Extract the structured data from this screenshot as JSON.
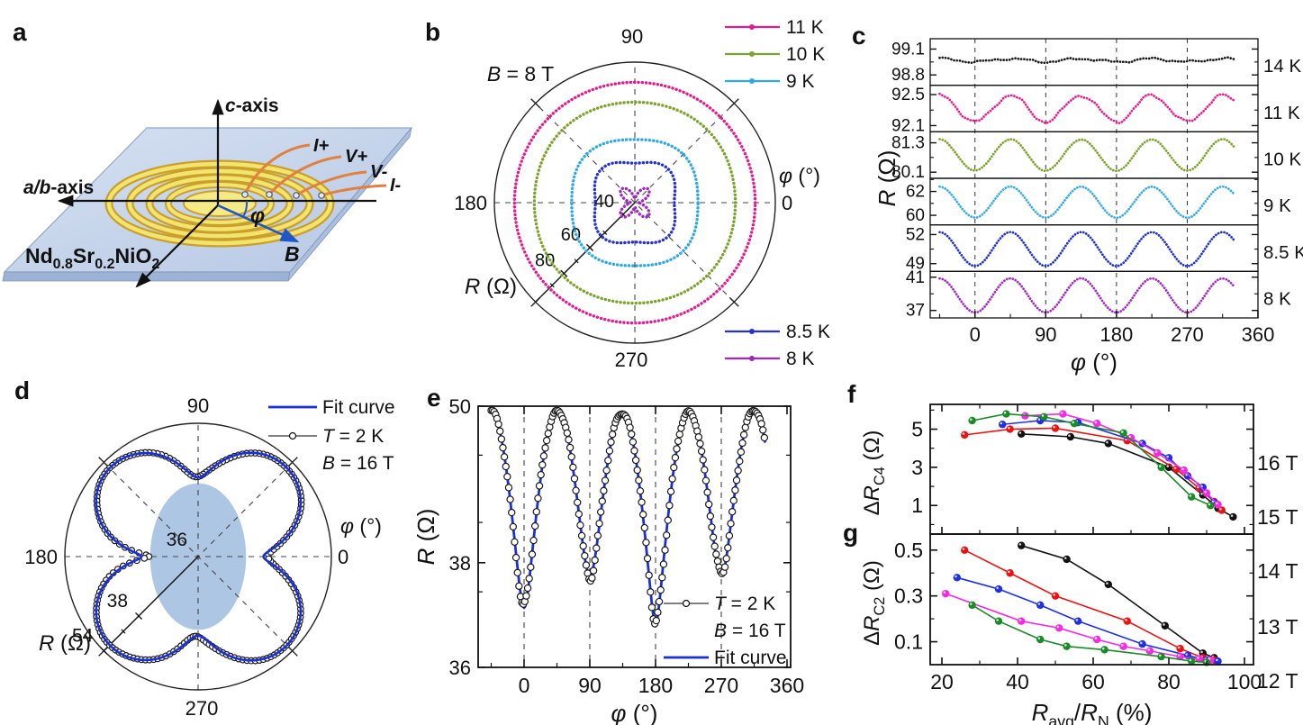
{
  "figure": {
    "background": "#ffffff"
  },
  "panel_letters": {
    "a": "a",
    "b": "b",
    "c": "c",
    "d": "d",
    "e": "e",
    "f": "f",
    "g": "g"
  },
  "panel_a": {
    "axis_c_sym": "c",
    "axis_c_rest": "-axis",
    "axis_ab_sym": "a/b",
    "axis_ab_rest": "-axis",
    "angle": "φ",
    "field": "B",
    "leads": [
      "I+",
      "V+",
      "V-",
      "I-"
    ],
    "material": {
      "el1": "Nd",
      "sub1": "0.8",
      "el2": "Sr",
      "sub2": "0.2",
      "el3": "NiO",
      "sub3": "2"
    },
    "colors": {
      "plate_top": "#c9d7ee",
      "plate_side": "#9db3d6",
      "ring_gold": "#c8a02a",
      "ring_fill": "#f2e46e",
      "disk_fill": "#f5ea85",
      "wire": "#e0813f",
      "field_arrow": "#2156c8",
      "axis": "#111111"
    }
  },
  "chart_data": {
    "panel_b": {
      "type": "polar",
      "title": {
        "sym": "B",
        "rest": " = 8 T"
      },
      "angle_labels": {
        "t90": "90",
        "t180": "180",
        "t0": "0",
        "t270": "270"
      },
      "angle_axis_title": {
        "sym": "φ",
        "unit": " (°)"
      },
      "radial_axis_title": {
        "sym": "R",
        "unit": " (Ω)"
      },
      "radial_ticks": [
        "40",
        "60",
        "80"
      ],
      "radial_tick_values": [
        40,
        60,
        80
      ],
      "radial_minor_values": [
        50,
        70,
        90
      ],
      "radial_range": [
        36,
        105
      ],
      "radial_power": 0.75,
      "series": [
        {
          "label": "11 K",
          "color": "#ea1a8c",
          "r_axis": 92.15,
          "r_diag": 92.5
        },
        {
          "label": "10 K",
          "color": "#7ca32b",
          "r_axis": 80.15,
          "r_diag": 81.45
        },
        {
          "label": "9 K",
          "color": "#2fa8e6",
          "r_axis": 59.75,
          "r_diag": 62.4
        },
        {
          "label": "8.5 K",
          "color": "#2430d8",
          "r_axis": 48.7,
          "r_diag": 52.2
        },
        {
          "label": "8 K",
          "color": "#a126c2",
          "r_axis": 36.65,
          "r_diag": 40.8
        }
      ],
      "legend_top_indices": [
        0,
        1,
        2
      ],
      "legend_bottom_indices": [
        3,
        4
      ]
    },
    "panel_c": {
      "type": "stacked_line",
      "x": {
        "min": -57,
        "max": 360,
        "ticks": [
          "0",
          "90",
          "180",
          "270",
          "360"
        ],
        "tick_values": [
          0,
          90,
          180,
          270,
          360
        ],
        "minor_step": 45,
        "dashed": [
          0,
          90,
          180,
          270
        ],
        "data_start": -45,
        "data_end": 330
      },
      "xlabel": {
        "sym": "φ",
        "unit": " (°)"
      },
      "ylabel": {
        "sym": "R",
        "unit": " (Ω)"
      },
      "subpanels": [
        {
          "label": "14 K",
          "color": "#1a1a1a",
          "ymin": 98.68,
          "ymax": 99.22,
          "tick_hi": "99.1",
          "tick_lo": "98.8",
          "tick_hi_v": 99.1,
          "tick_lo_v": 98.8,
          "mid": 98.97,
          "amp": 0.018,
          "noise": 0.018
        },
        {
          "label": "11 K",
          "color": "#ec1c8d",
          "ymin": 92.02,
          "ymax": 92.62,
          "tick_hi": "92.5",
          "tick_lo": "92.1",
          "tick_hi_v": 92.5,
          "tick_lo_v": 92.1,
          "mid": 92.32,
          "amp": 0.17,
          "noise": 0.028
        },
        {
          "label": "10 K",
          "color": "#7ca32b",
          "ymin": 79.85,
          "ymax": 81.75,
          "tick_hi": "81.3",
          "tick_lo": "80.1",
          "tick_hi_v": 81.3,
          "tick_lo_v": 80.1,
          "mid": 80.8,
          "amp": 0.64,
          "noise": 0.018
        },
        {
          "label": "9 K",
          "color": "#35abe8",
          "ymin": 59.2,
          "ymax": 63.1,
          "tick_hi": "62",
          "tick_lo": "60",
          "tick_hi_v": 62,
          "tick_lo_v": 60,
          "mid": 61.1,
          "amp": 1.3,
          "noise": 0.015
        },
        {
          "label": "8.5 K",
          "color": "#2133cc",
          "ymin": 48.2,
          "ymax": 53.0,
          "tick_hi": "52",
          "tick_lo": "49",
          "tick_hi_v": 52,
          "tick_lo_v": 49,
          "mid": 50.5,
          "amp": 1.75,
          "noise": 0.015
        },
        {
          "label": "8 K",
          "color": "#a22bc4",
          "ymin": 36.1,
          "ymax": 41.7,
          "tick_hi": "41",
          "tick_lo": "37",
          "tick_hi_v": 41,
          "tick_lo_v": 37,
          "mid": 38.8,
          "amp": 2.05,
          "noise": 0.015
        }
      ]
    },
    "panel_d": {
      "type": "polar_fit",
      "angle_labels": {
        "t90": "90",
        "t180": "180",
        "t0": "0",
        "t270": "270"
      },
      "angle_axis_title": {
        "sym": "φ",
        "unit": " (°)"
      },
      "radial_axis_title": {
        "sym": "R",
        "unit": " (Ω)"
      },
      "radial_center_label": "36",
      "radial_ticks": [
        "38",
        "54"
      ],
      "radial_tick_values": [
        38,
        54
      ],
      "radial_minor_values": [
        42,
        48
      ],
      "radial_range": [
        36,
        54
      ],
      "radial_power": 0.21,
      "fit": {
        "base": 43.19,
        "a4": 6.21,
        "a2": 0.525,
        "a1": 0.15
      },
      "colors": {
        "fit": "#1b2fd8",
        "data": "#1a1a1a",
        "ellipse": "#adc6e4"
      },
      "ellipse": {
        "rx_frac": 0.36,
        "ry_frac": 0.55
      },
      "legend": {
        "fit": "Fit curve",
        "temp": {
          "sym": "T",
          "rest": " = 2 K"
        },
        "field": {
          "sym": "B",
          "rest": " = 16 T"
        }
      }
    },
    "panel_e": {
      "type": "line_fit",
      "x": {
        "ticks": [
          "0",
          "90",
          "180",
          "270",
          "360"
        ],
        "tick_values": [
          0,
          90,
          180,
          270,
          360
        ],
        "minor_step": 45,
        "dashed": [
          0,
          90,
          180,
          270
        ],
        "data_start": -45,
        "data_end": 330
      },
      "xlabel": {
        "sym": "φ",
        "unit": " (°)"
      },
      "ylabel": {
        "sym": "R",
        "unit": " (Ω)"
      },
      "y": {
        "min": 36,
        "max": 50,
        "power": 0.47,
        "major_ticks": [
          "36",
          "38",
          "50"
        ],
        "major_values": [
          36,
          38,
          50
        ],
        "minor_values": [
          37,
          40,
          45
        ]
      },
      "fit": {
        "base": 43.19,
        "a4": 6.21,
        "a2": 0.525,
        "a1": 0.15
      },
      "colors": {
        "fit": "#1b2fd8",
        "data": "#1a1a1a"
      },
      "legend": {
        "temp": {
          "sym": "T",
          "rest": " = 2 K"
        },
        "field": {
          "sym": "B",
          "rest": " = 16 T"
        },
        "fit": "Fit curve"
      }
    },
    "panel_f": {
      "type": "scatter_line",
      "ylabel": {
        "delta": "Δ",
        "sym": "R",
        "sub": "C4",
        "unit": " (Ω)"
      },
      "yticks": [
        "1",
        "3",
        "5"
      ],
      "ytick_values": [
        1,
        3,
        5
      ],
      "yminor_values": [
        0,
        2,
        4,
        6
      ],
      "yrange": [
        -0.5,
        6.3
      ],
      "series": [
        {
          "label": "16 T",
          "color": "#111111",
          "points": [
            [
              41,
              4.75
            ],
            [
              54,
              4.6
            ],
            [
              64,
              4.25
            ],
            [
              80,
              3.0
            ],
            [
              89,
              1.55
            ],
            [
              93,
              0.85
            ],
            [
              97,
              0.4
            ]
          ]
        },
        {
          "label": "15 T",
          "color": "#ea1212",
          "points": [
            [
              26,
              4.7
            ],
            [
              38,
              5.0
            ],
            [
              50,
              5.05
            ],
            [
              69,
              4.4
            ],
            [
              82,
              2.9
            ],
            [
              88,
              1.9
            ],
            [
              92,
              1.2
            ],
            [
              94,
              0.75
            ]
          ]
        },
        {
          "label": "14 T",
          "color": "#1f2fe8",
          "points": [
            [
              36,
              5.25
            ],
            [
              46,
              5.45
            ],
            [
              56,
              5.35
            ],
            [
              73,
              4.25
            ],
            [
              80,
              3.5
            ],
            [
              85,
              2.55
            ],
            [
              89,
              1.95
            ],
            [
              92,
              1.15
            ]
          ]
        },
        {
          "label": "13 T",
          "color": "#f32be3",
          "points": [
            [
              42,
              5.7
            ],
            [
              52,
              5.8
            ],
            [
              61,
              5.3
            ],
            [
              70,
              4.55
            ],
            [
              77,
              3.75
            ],
            [
              84,
              2.85
            ],
            [
              90,
              1.65
            ],
            [
              93,
              1.05
            ]
          ]
        },
        {
          "label": "12 T",
          "color": "#1b8a28",
          "points": [
            [
              28,
              5.45
            ],
            [
              37,
              5.8
            ],
            [
              47,
              5.65
            ],
            [
              55,
              5.3
            ],
            [
              68,
              4.8
            ],
            [
              78,
              3.0
            ],
            [
              86,
              1.45
            ],
            [
              91,
              1.0
            ]
          ]
        }
      ]
    },
    "panel_g": {
      "type": "scatter_line",
      "ylabel": {
        "delta": "Δ",
        "sym": "R",
        "sub": "C2",
        "unit": " (Ω)"
      },
      "yticks": [
        "0.1",
        "0.3",
        "0.5"
      ],
      "ytick_values": [
        0.1,
        0.3,
        0.5
      ],
      "yminor_values": [
        0.2,
        0.4
      ],
      "yrange": [
        0,
        0.57
      ],
      "xlabel": {
        "sym1": "R",
        "sub1": "avg",
        "slash": "/",
        "sym2": "R",
        "sub2": "N",
        "unit": " (%)"
      },
      "xticks": [
        "20",
        "40",
        "60",
        "80",
        "100"
      ],
      "xtick_values": [
        20,
        40,
        60,
        80,
        100
      ],
      "xminor_values": [
        30,
        50,
        70,
        90
      ],
      "xrange": [
        17,
        102
      ],
      "series": [
        {
          "label": "16 T",
          "color": "#111111",
          "points": [
            [
              41,
              0.52
            ],
            [
              53,
              0.46
            ],
            [
              64,
              0.35
            ],
            [
              79,
              0.17
            ],
            [
              89,
              0.05
            ],
            [
              92,
              0.03
            ]
          ]
        },
        {
          "label": "15 T",
          "color": "#ea1212",
          "points": [
            [
              26,
              0.5
            ],
            [
              38,
              0.4
            ],
            [
              50,
              0.3
            ],
            [
              69,
              0.19
            ],
            [
              83,
              0.07
            ],
            [
              89,
              0.03
            ],
            [
              92,
              0.02
            ]
          ]
        },
        {
          "label": "14 T",
          "color": "#1f2fe8",
          "points": [
            [
              24,
              0.38
            ],
            [
              35,
              0.33
            ],
            [
              46,
              0.26
            ],
            [
              56,
              0.19
            ],
            [
              73,
              0.09
            ],
            [
              85,
              0.04
            ],
            [
              90,
              0.02
            ],
            [
              93,
              0.015
            ]
          ]
        },
        {
          "label": "13 T",
          "color": "#f32be3",
          "points": [
            [
              21,
              0.31
            ],
            [
              41,
              0.19
            ],
            [
              51,
              0.16
            ],
            [
              61,
              0.11
            ],
            [
              68,
              0.08
            ],
            [
              75,
              0.06
            ],
            [
              83,
              0.035
            ],
            [
              88,
              0.025
            ],
            [
              91,
              0.02
            ]
          ]
        },
        {
          "label": "12 T",
          "color": "#1b8a28",
          "points": [
            [
              28,
              0.26
            ],
            [
              35,
              0.19
            ],
            [
              46,
              0.11
            ],
            [
              53,
              0.08
            ],
            [
              63,
              0.065
            ],
            [
              78,
              0.035
            ],
            [
              86,
              0.015
            ],
            [
              90,
              0.01
            ]
          ]
        }
      ],
      "legend_labels": [
        "16 T",
        "15 T",
        "14 T",
        "13 T",
        "12 T"
      ]
    }
  }
}
